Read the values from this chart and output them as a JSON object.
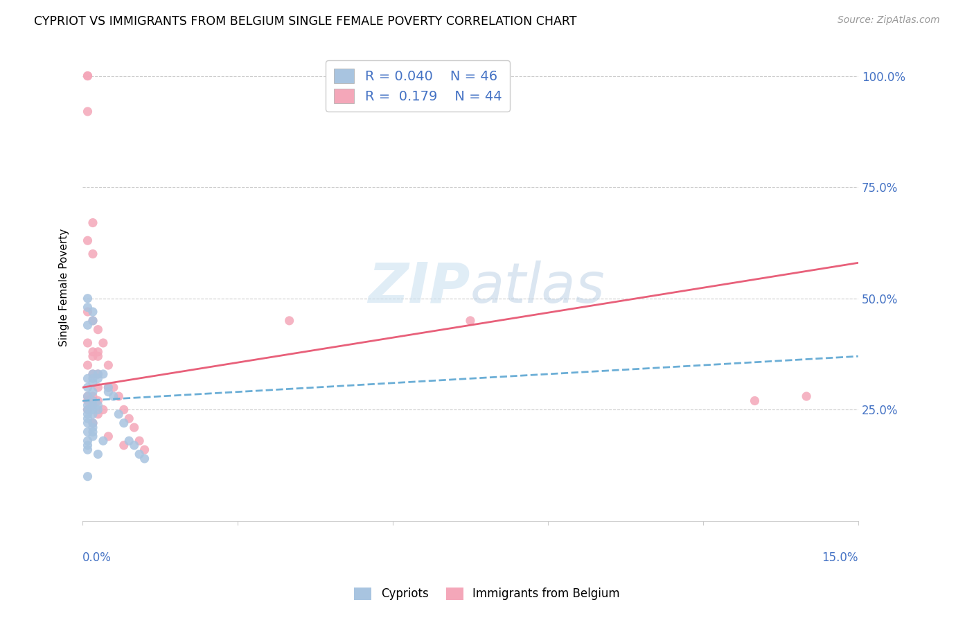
{
  "title": "CYPRIOT VS IMMIGRANTS FROM BELGIUM SINGLE FEMALE POVERTY CORRELATION CHART",
  "source": "Source: ZipAtlas.com",
  "ylabel": "Single Female Poverty",
  "xlim": [
    0.0,
    0.15
  ],
  "ylim": [
    0.0,
    1.05
  ],
  "legend_r_cypriot": "0.040",
  "legend_n_cypriot": "46",
  "legend_r_belgium": "0.179",
  "legend_n_belgium": "44",
  "color_cypriot": "#a8c4e0",
  "color_belgium": "#f4a7b9",
  "line_color_cypriot": "#6baed6",
  "line_color_belgium": "#e8607a",
  "cypriot_line_x0": 0.0,
  "cypriot_line_y0": 0.27,
  "cypriot_line_x1": 0.15,
  "cypriot_line_y1": 0.37,
  "belgium_line_x0": 0.0,
  "belgium_line_y0": 0.3,
  "belgium_line_x1": 0.15,
  "belgium_line_y1": 0.58,
  "cypriot_x": [
    0.001,
    0.001,
    0.001,
    0.001,
    0.001,
    0.001,
    0.001,
    0.001,
    0.001,
    0.001,
    0.001,
    0.001,
    0.001,
    0.001,
    0.001,
    0.001,
    0.002,
    0.002,
    0.002,
    0.002,
    0.002,
    0.002,
    0.002,
    0.002,
    0.002,
    0.002,
    0.002,
    0.002,
    0.002,
    0.002,
    0.003,
    0.003,
    0.003,
    0.003,
    0.003,
    0.004,
    0.004,
    0.005,
    0.005,
    0.006,
    0.007,
    0.008,
    0.009,
    0.01,
    0.011,
    0.012
  ],
  "cypriot_y": [
    0.5,
    0.48,
    0.44,
    0.32,
    0.3,
    0.28,
    0.26,
    0.25,
    0.24,
    0.23,
    0.22,
    0.2,
    0.18,
    0.17,
    0.16,
    0.1,
    0.47,
    0.45,
    0.33,
    0.32,
    0.31,
    0.29,
    0.27,
    0.26,
    0.25,
    0.24,
    0.22,
    0.21,
    0.2,
    0.19,
    0.33,
    0.32,
    0.26,
    0.25,
    0.15,
    0.33,
    0.18,
    0.3,
    0.29,
    0.28,
    0.24,
    0.22,
    0.18,
    0.17,
    0.15,
    0.14
  ],
  "belgium_x": [
    0.001,
    0.001,
    0.001,
    0.001,
    0.001,
    0.001,
    0.001,
    0.001,
    0.001,
    0.001,
    0.002,
    0.002,
    0.002,
    0.002,
    0.002,
    0.002,
    0.002,
    0.002,
    0.002,
    0.002,
    0.003,
    0.003,
    0.003,
    0.003,
    0.003,
    0.003,
    0.003,
    0.004,
    0.004,
    0.005,
    0.005,
    0.005,
    0.006,
    0.007,
    0.008,
    0.008,
    0.009,
    0.01,
    0.011,
    0.012,
    0.04,
    0.075,
    0.13,
    0.14
  ],
  "belgium_y": [
    1.0,
    1.0,
    0.92,
    0.63,
    0.47,
    0.4,
    0.35,
    0.28,
    0.27,
    0.25,
    0.67,
    0.6,
    0.45,
    0.38,
    0.37,
    0.33,
    0.28,
    0.27,
    0.26,
    0.22,
    0.43,
    0.38,
    0.37,
    0.33,
    0.3,
    0.27,
    0.24,
    0.4,
    0.25,
    0.35,
    0.3,
    0.19,
    0.3,
    0.28,
    0.25,
    0.17,
    0.23,
    0.21,
    0.18,
    0.16,
    0.45,
    0.45,
    0.27,
    0.28
  ]
}
